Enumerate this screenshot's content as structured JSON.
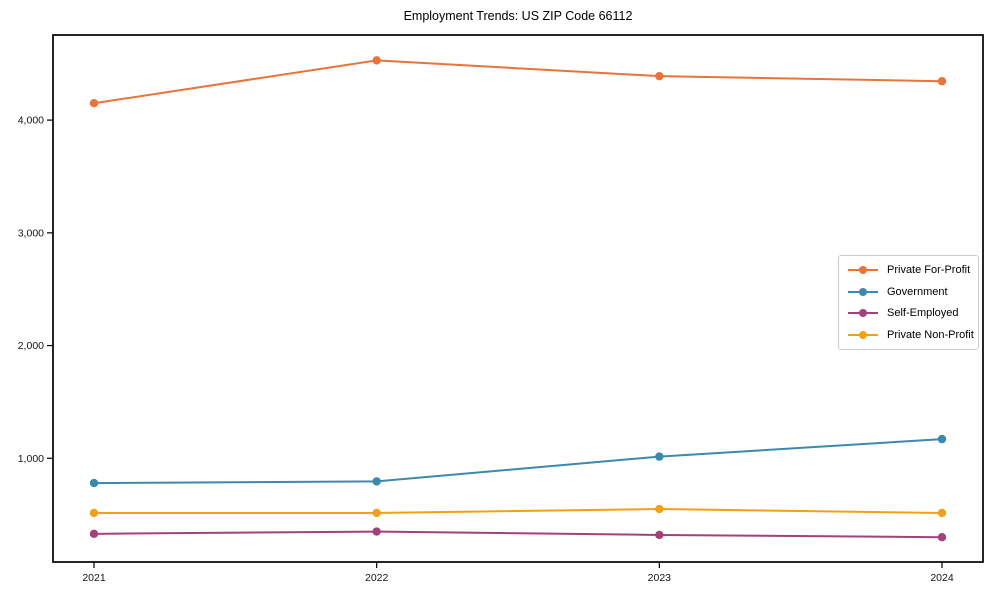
{
  "chart_data": {
    "type": "line",
    "title": "Employment Trends: US ZIP Code 66112",
    "x": [
      "2021",
      "2022",
      "2023",
      "2024"
    ],
    "xlabel": "",
    "ylabel": "",
    "ylim": [
      80,
      4755
    ],
    "grid": false,
    "legend_position": "center right",
    "y_ticks": [
      {
        "value": 1000,
        "label": "1,000"
      },
      {
        "value": 2000,
        "label": "2,000"
      },
      {
        "value": 3000,
        "label": "3,000"
      },
      {
        "value": 4000,
        "label": "4,000"
      }
    ],
    "series": [
      {
        "name": "Private For-Profit",
        "color": "#e8743b",
        "values": [
          4150,
          4530,
          4390,
          4345
        ]
      },
      {
        "name": "Government",
        "color": "#3b89ac",
        "values": [
          780,
          795,
          1015,
          1170
        ]
      },
      {
        "name": "Self-Employed",
        "color": "#a3417a",
        "values": [
          330,
          350,
          320,
          300
        ]
      },
      {
        "name": "Private Non-Profit",
        "color": "#f2a016",
        "values": [
          515,
          515,
          550,
          515
        ]
      }
    ]
  }
}
